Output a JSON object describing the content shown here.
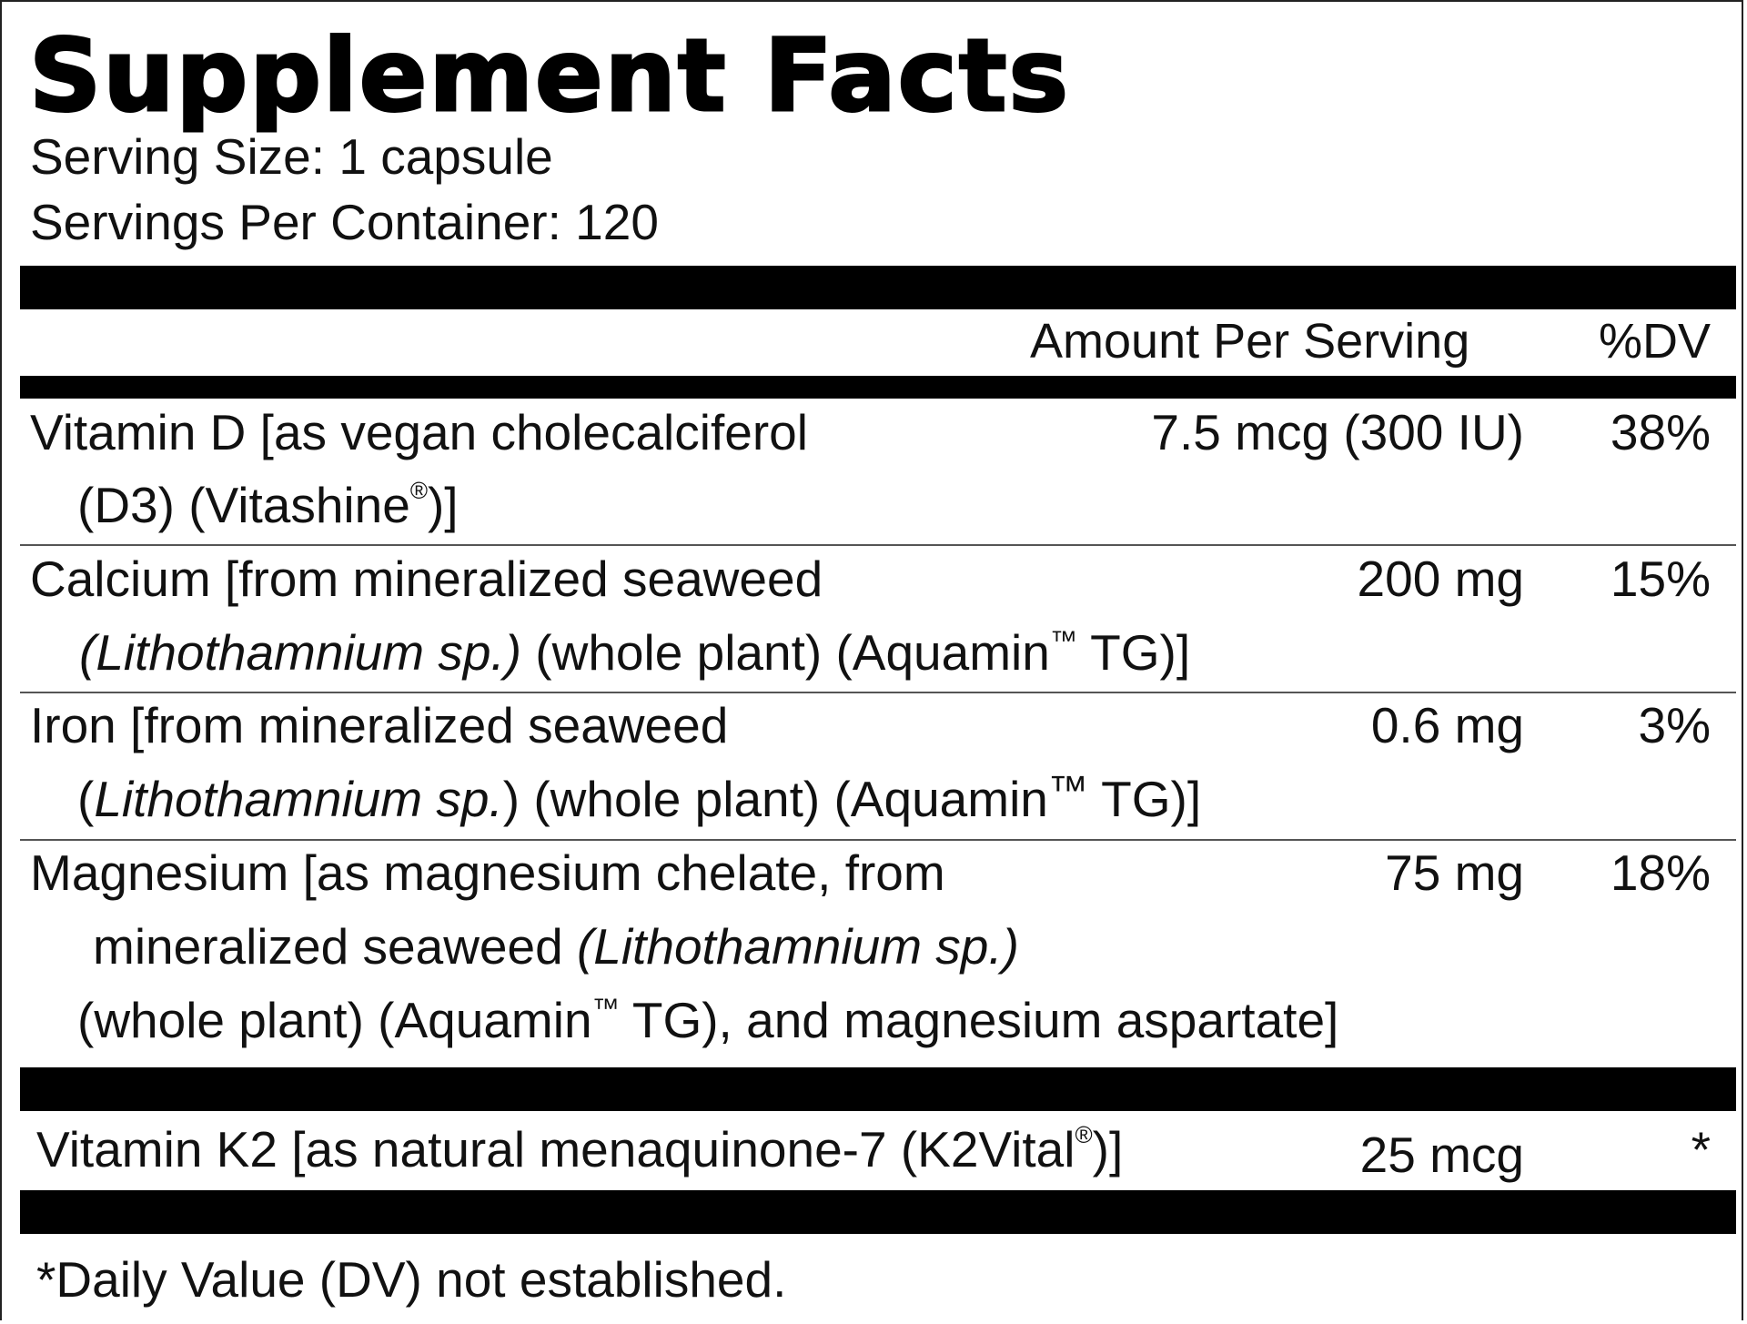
{
  "title": "Supplement Facts",
  "serving_size": "Serving Size: 1 capsule",
  "servings_per_container": "Servings Per Container: 120",
  "header": {
    "amount": "Amount Per Serving",
    "dv": "%DV"
  },
  "rows": [
    {
      "line1": "Vitamin D [as vegan cholecalciferol",
      "line2_a": "(D3) (Vitashine",
      "line2_mark": "®",
      "line2_b": ")]",
      "amount": "7.5 mcg (300 IU)",
      "dv": "38%"
    },
    {
      "line1": "Calcium [from mineralized seaweed",
      "line2_italic": "(Lithothamnium sp.)",
      "line2_a": " (whole plant) (Aquamin",
      "line2_tm": "™",
      "line2_b": " TG)]",
      "amount": "200 mg",
      "dv": "15%"
    },
    {
      "line1": "Iron [from mineralized seaweed",
      "line2_open": "(",
      "line2_italic": "Lithothamnium sp.",
      "line2_a": ") (whole plant) (Aquamin",
      "line2_tm": "™",
      "line2_b": " TG)]",
      "amount": "0.6 mg",
      "dv": "3%"
    },
    {
      "line1": "Magnesium [as magnesium chelate, from",
      "line2_a": "mineralized seaweed ",
      "line2_italic": "(Lithothamnium sp.)",
      "line3_a": "(whole plant) (Aquamin",
      "line3_tm": "™",
      "line3_b": " TG), and magnesium aspartate]",
      "amount": "75 mg",
      "dv": "18%"
    }
  ],
  "k2": {
    "name_a": "Vitamin K2 [as natural menaquinone-7 (K2Vital",
    "name_mark": "®",
    "name_b": ")]",
    "amount": "25 mcg",
    "dv": "*"
  },
  "footnote": "*Daily Value (DV) not established."
}
